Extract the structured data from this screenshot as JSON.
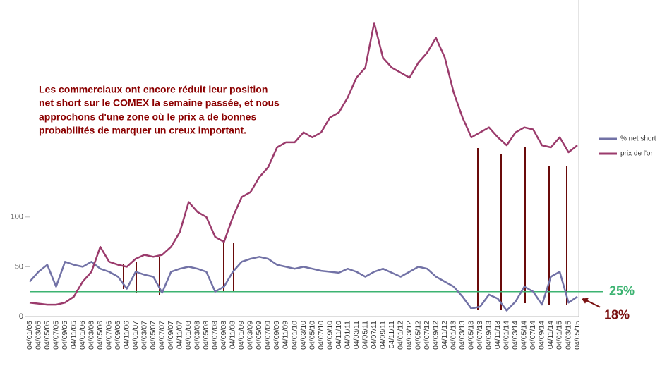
{
  "chart_data": {
    "type": "line",
    "annotation": [
      "Les commerciaux ont encore réduit leur position",
      "net short sur le COMEX la semaine passée, et nous",
      "approchons d'une zone où le prix a de bonnes",
      "probabilités de marquer un creux important."
    ],
    "categories": [
      "04/01/05",
      "04/03/05",
      "04/05/05",
      "04/07/05",
      "04/09/05",
      "04/11/05",
      "04/01/06",
      "04/03/06",
      "04/05/06",
      "04/07/06",
      "04/09/06",
      "04/11/06",
      "04/01/07",
      "04/03/07",
      "04/05/07",
      "04/07/07",
      "04/09/07",
      "04/11/07",
      "04/01/08",
      "04/03/08",
      "04/05/08",
      "04/07/08",
      "04/09/08",
      "04/11/08",
      "04/01/09",
      "04/03/09",
      "04/05/09",
      "04/07/09",
      "04/09/09",
      "04/11/09",
      "04/01/10",
      "04/03/10",
      "04/05/10",
      "04/07/10",
      "04/09/10",
      "04/11/10",
      "04/01/11",
      "04/03/11",
      "04/05/11",
      "04/07/11",
      "04/09/11",
      "04/11/11",
      "04/01/12",
      "04/03/12",
      "04/05/12",
      "04/07/12",
      "04/09/12",
      "04/11/12",
      "04/01/13",
      "04/03/13",
      "04/05/13",
      "04/07/13",
      "04/09/13",
      "04/11/13",
      "04/01/14",
      "04/03/14",
      "04/05/14",
      "04/07/14",
      "04/09/14",
      "04/11/14",
      "04/01/15",
      "04/03/15",
      "04/05/15"
    ],
    "series": [
      {
        "name": "% net short",
        "color": "#7272a6",
        "values": [
          35,
          45,
          52,
          30,
          55,
          52,
          50,
          55,
          48,
          45,
          40,
          28,
          45,
          42,
          40,
          24,
          45,
          48,
          50,
          48,
          45,
          25,
          30,
          45,
          55,
          58,
          60,
          58,
          52,
          50,
          48,
          50,
          48,
          46,
          45,
          44,
          48,
          45,
          40,
          45,
          48,
          44,
          40,
          45,
          50,
          48,
          40,
          35,
          30,
          20,
          8,
          10,
          22,
          18,
          6,
          15,
          30,
          25,
          12,
          40,
          45,
          14,
          20
        ]
      },
      {
        "name": "prix de l'or",
        "color": "#9b3b6c",
        "values": [
          14,
          13,
          12,
          12,
          14,
          20,
          35,
          45,
          70,
          55,
          52,
          50,
          58,
          62,
          60,
          62,
          70,
          85,
          115,
          105,
          100,
          80,
          75,
          100,
          120,
          125,
          140,
          150,
          170,
          175,
          175,
          185,
          180,
          185,
          200,
          205,
          220,
          240,
          250,
          295,
          260,
          250,
          245,
          240,
          255,
          265,
          280,
          260,
          225,
          200,
          180,
          185,
          190,
          180,
          172,
          185,
          190,
          188,
          172,
          170,
          180,
          165,
          172
        ]
      }
    ],
    "ylim": [
      0,
      318
    ],
    "yticks": [
      0,
      50,
      100
    ],
    "reference_line": {
      "value": 25,
      "label": "25%",
      "color": "#3cb371"
    },
    "callout": {
      "value": 18,
      "label": "18%",
      "color": "#7a1010"
    }
  }
}
